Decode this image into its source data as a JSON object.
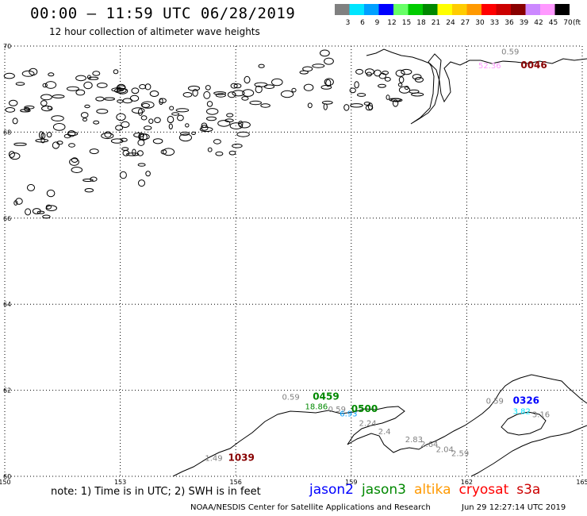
{
  "header": {
    "title": "00:00 – 11:59 UTC 06/28/2019",
    "subtitle": "12 hour collection of altimeter wave heights"
  },
  "colorbar": {
    "unit": "(ft)",
    "ticks": [
      "3",
      "6",
      "9",
      "12",
      "15",
      "18",
      "21",
      "24",
      "27",
      "30",
      "33",
      "36",
      "39",
      "42",
      "45",
      "70"
    ],
    "colors": [
      "#808080",
      "#00e5ff",
      "#00a0ff",
      "#0000ff",
      "#66ff66",
      "#00cc00",
      "#008800",
      "#ffff00",
      "#ffcc00",
      "#ff9900",
      "#ff0000",
      "#cc0000",
      "#880000",
      "#cc88ff",
      "#ff99ff",
      "#000000"
    ]
  },
  "map": {
    "lat_labels": [
      "70",
      "68",
      "66",
      "64",
      "62",
      "60"
    ],
    "lon_labels": [
      "150",
      "153",
      "156",
      "159",
      "162",
      "165"
    ],
    "annotations": [
      {
        "text": "0.59",
        "color": "#808080",
        "lat": 69.81,
        "lon": 162.9
      },
      {
        "text": "52.36",
        "color": "#ff99ff",
        "lat": 69.48,
        "lon": 162.3
      },
      {
        "text": "0046",
        "color": "#880000",
        "lat": 69.48,
        "lon": 163.4,
        "bold": true
      },
      {
        "text": "0.59",
        "color": "#808080",
        "lat": 61.78,
        "lon": 157.2
      },
      {
        "text": "0459",
        "color": "#008800",
        "lat": 61.78,
        "lon": 158.0,
        "bold": true
      },
      {
        "text": "18.86",
        "color": "#008800",
        "lat": 61.56,
        "lon": 157.8
      },
      {
        "text": "0.59",
        "color": "#808080",
        "lat": 61.49,
        "lon": 158.4
      },
      {
        "text": "6.93",
        "color": "#00a0ff",
        "lat": 61.39,
        "lon": 158.7
      },
      {
        "text": "0500",
        "color": "#008800",
        "lat": 61.49,
        "lon": 159.0,
        "bold": true
      },
      {
        "text": "2.24",
        "color": "#808080",
        "lat": 61.17,
        "lon": 159.2
      },
      {
        "text": "2.4",
        "color": "#808080",
        "lat": 60.98,
        "lon": 159.7
      },
      {
        "text": "2.83",
        "color": "#808080",
        "lat": 60.79,
        "lon": 160.4
      },
      {
        "text": "2.64",
        "color": "#808080",
        "lat": 60.68,
        "lon": 160.8
      },
      {
        "text": "2.04",
        "color": "#808080",
        "lat": 60.56,
        "lon": 161.2
      },
      {
        "text": "2.59",
        "color": "#808080",
        "lat": 60.47,
        "lon": 161.6
      },
      {
        "text": "1.49",
        "color": "#808080",
        "lat": 60.36,
        "lon": 155.2
      },
      {
        "text": "1039",
        "color": "#880000",
        "lat": 60.36,
        "lon": 155.8,
        "bold": true
      },
      {
        "text": "0.59",
        "color": "#808080",
        "lat": 61.69,
        "lon": 162.5
      },
      {
        "text": "0326",
        "color": "#0000ff",
        "lat": 61.69,
        "lon": 163.2,
        "bold": true
      },
      {
        "text": "3.82",
        "color": "#00e5ff",
        "lat": 61.45,
        "lon": 163.2
      },
      {
        "text": "3.16",
        "color": "#808080",
        "lat": 61.37,
        "lon": 163.7
      }
    ]
  },
  "footer": {
    "note": "note: 1) Time is in UTC; 2) SWH is in feet",
    "satellites": [
      {
        "name": "jason2",
        "color": "#0000ff"
      },
      {
        "name": "jason3",
        "color": "#008800"
      },
      {
        "name": "altika",
        "color": "#ff9900"
      },
      {
        "name": "cryosat",
        "color": "#ff0000"
      },
      {
        "name": "s3a",
        "color": "#cc0000"
      }
    ],
    "credit": "NOAA/NESDIS Center for Satellite Applications and Research",
    "timestamp": "Jun 29 12:27:14 UTC 2019"
  }
}
